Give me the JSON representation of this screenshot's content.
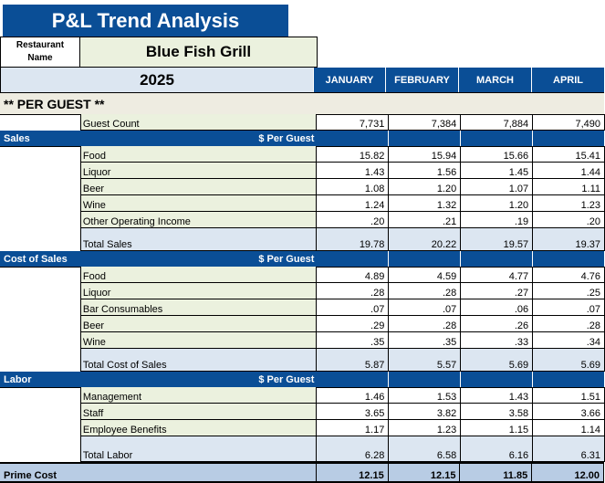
{
  "title": "P&L Trend Analysis",
  "restaurant_label": "Restaurant Name",
  "restaurant_name": "Blue Fish Grill",
  "year": "2025",
  "months": [
    "JANUARY",
    "FEBRUARY",
    "MARCH",
    "APRIL"
  ],
  "per_guest_heading": "** PER GUEST **",
  "guest_count": {
    "label": "Guest Count",
    "values": [
      "7,731",
      "7,384",
      "7,884",
      "7,490"
    ]
  },
  "per_guest_label": "$ Per Guest",
  "sections": [
    {
      "name": "Sales",
      "rows": [
        {
          "label": "Food",
          "values": [
            "15.82",
            "15.94",
            "15.66",
            "15.41"
          ]
        },
        {
          "label": "Liquor",
          "values": [
            "1.43",
            "1.56",
            "1.45",
            "1.44"
          ]
        },
        {
          "label": "Beer",
          "values": [
            "1.08",
            "1.20",
            "1.07",
            "1.11"
          ]
        },
        {
          "label": "Wine",
          "values": [
            "1.24",
            "1.32",
            "1.20",
            "1.23"
          ]
        },
        {
          "label": "Other Operating Income",
          "values": [
            ".20",
            ".21",
            ".19",
            ".20"
          ]
        }
      ],
      "total": {
        "label": "Total Sales",
        "values": [
          "19.78",
          "20.22",
          "19.57",
          "19.37"
        ]
      }
    },
    {
      "name": "Cost of Sales",
      "rows": [
        {
          "label": "Food",
          "values": [
            "4.89",
            "4.59",
            "4.77",
            "4.76"
          ]
        },
        {
          "label": "Liquor",
          "values": [
            ".28",
            ".28",
            ".27",
            ".25"
          ]
        },
        {
          "label": "Bar Consumables",
          "values": [
            ".07",
            ".07",
            ".06",
            ".07"
          ]
        },
        {
          "label": "Beer",
          "values": [
            ".29",
            ".28",
            ".26",
            ".28"
          ]
        },
        {
          "label": "Wine",
          "values": [
            ".35",
            ".35",
            ".33",
            ".34"
          ]
        }
      ],
      "total": {
        "label": "Total Cost of Sales",
        "values": [
          "5.87",
          "5.57",
          "5.69",
          "5.69"
        ]
      }
    },
    {
      "name": "Labor",
      "rows": [
        {
          "label": "Management",
          "values": [
            "1.46",
            "1.53",
            "1.43",
            "1.51"
          ]
        },
        {
          "label": "Staff",
          "values": [
            "3.65",
            "3.82",
            "3.58",
            "3.66"
          ]
        },
        {
          "label": "Employee Benefits",
          "values": [
            "1.17",
            "1.23",
            "1.15",
            "1.14"
          ]
        }
      ],
      "total": {
        "label": "Total Labor",
        "values": [
          "6.28",
          "6.58",
          "6.16",
          "6.31"
        ]
      }
    }
  ],
  "prime_cost": {
    "label": "Prime Cost",
    "values": [
      "12.15",
      "12.15",
      "11.85",
      "12.00"
    ]
  }
}
